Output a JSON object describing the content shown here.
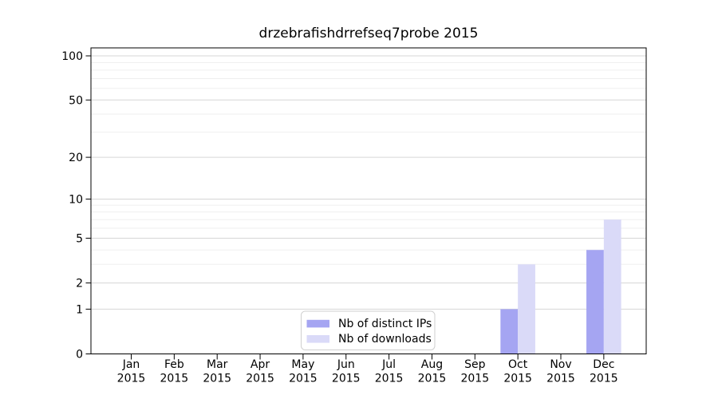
{
  "figure": {
    "background": "#ffffff"
  },
  "chart_data": {
    "type": "bar",
    "title": "drzebrafishdrrefseq7probe 2015",
    "xlabel": "",
    "ylabel": "",
    "categories": [
      "Jan",
      "Feb",
      "Mar",
      "Apr",
      "May",
      "Jun",
      "Jul",
      "Aug",
      "Sep",
      "Oct",
      "Nov",
      "Dec"
    ],
    "category_year": "2015",
    "series": [
      {
        "name": "Nb of distinct IPs",
        "color": "#a5a5f2",
        "values": [
          0,
          0,
          0,
          0,
          0,
          0,
          0,
          0,
          0,
          1,
          0,
          4
        ]
      },
      {
        "name": "Nb of downloads",
        "color": "#dadaf8",
        "values": [
          0,
          0,
          0,
          0,
          0,
          0,
          0,
          0,
          0,
          3,
          0,
          7
        ]
      }
    ],
    "yscale": "log1p",
    "yticks": [
      0,
      1,
      2,
      5,
      10,
      20,
      50,
      100
    ],
    "minor_gridlines": [
      3,
      4,
      6,
      7,
      8,
      9,
      30,
      40,
      60,
      70,
      80,
      90
    ],
    "ylim": [
      0,
      114
    ],
    "grid": true,
    "legend_position": "inside-bottom-center",
    "colors": {
      "major_grid": "#d6d6d6",
      "minor_grid": "#efefef",
      "spine": "#000000",
      "legend_border": "#cfcfcf",
      "legend_bg": "#ffffff"
    }
  }
}
